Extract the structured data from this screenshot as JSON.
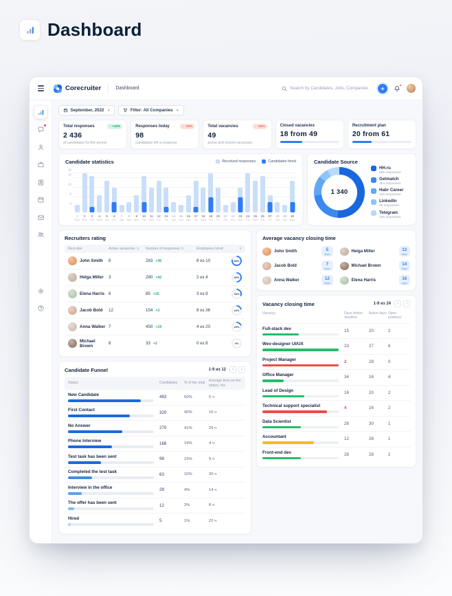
{
  "page_title": "Dashboard",
  "topbar": {
    "brand": "Corecruiter",
    "breadcrumb": "Dashboard",
    "search_placeholder": "Search by Candidates, Jobs, Companies"
  },
  "sidebar": {
    "active": "dashboard",
    "items": [
      "dashboard",
      "messages",
      "candidates",
      "jobs",
      "companies",
      "calendar",
      "mail",
      "team",
      "settings",
      "help"
    ]
  },
  "filters": {
    "date": "September, 2022",
    "company": "Filter: All Companies"
  },
  "stats": [
    {
      "label": "Total responses",
      "badge": "+15%",
      "direction": "up",
      "value": "2 436",
      "subtitle": "of candidates for the period"
    },
    {
      "label": "Responses today",
      "badge": "-10%",
      "direction": "down",
      "value": "98",
      "subtitle": "candidates left a response"
    },
    {
      "label": "Total vacancies",
      "badge": "-10%",
      "direction": "down",
      "value": "49",
      "subtitle": "active and closed vacancies"
    },
    {
      "label": "Closed vacancies",
      "value": "18 from 49",
      "progress": 37
    },
    {
      "label": "Recruitment plan",
      "value": "20 from 61",
      "progress": 33
    }
  ],
  "chart_data": [
    {
      "type": "bar",
      "title": "Candidate statistics",
      "legend": [
        "Received responses",
        "Candidates hired"
      ],
      "yticks": [
        2,
        6,
        10,
        14,
        16
      ],
      "ylim": [
        0,
        17
      ],
      "categories": [
        1,
        2,
        3,
        4,
        5,
        6,
        7,
        8,
        9,
        10,
        11,
        12,
        13,
        14,
        15,
        16,
        17,
        18,
        19,
        20,
        21,
        22,
        23,
        24,
        25,
        26,
        27,
        28,
        29,
        30
      ],
      "weekdays": [
        "Sun",
        "Mon",
        "Tue",
        "Wed",
        "Thu",
        "Fri",
        "Sat",
        "Sun",
        "Mon",
        "Tue",
        "Wed",
        "Thu",
        "Fri",
        "Sat",
        "Sun",
        "Mon",
        "Tue",
        "Wed",
        "Thu",
        "Fri",
        "Sat",
        "Sun",
        "Mon",
        "Tue",
        "Wed",
        "Thu",
        "Fri",
        "Sat",
        "Sun",
        "Mon"
      ],
      "series": [
        {
          "name": "Received responses",
          "color": "#c9def9",
          "values": [
            3,
            16,
            15,
            7,
            13,
            10,
            3,
            4,
            7,
            15,
            10,
            13,
            10,
            4,
            3,
            7,
            13,
            10,
            16,
            10,
            3,
            4,
            10,
            16,
            13,
            15,
            7,
            4,
            3,
            13
          ]
        },
        {
          "name": "Candidates hired",
          "color": "#2f7df5",
          "values": [
            0,
            0,
            2,
            0,
            0,
            4,
            0,
            0,
            0,
            4,
            0,
            0,
            2,
            0,
            0,
            0,
            2,
            0,
            6,
            0,
            0,
            0,
            6,
            0,
            0,
            0,
            4,
            0,
            0,
            4
          ]
        }
      ]
    },
    {
      "type": "pie",
      "title": "Candidate Source",
      "center_total": "1 340",
      "segments": [
        {
          "label": "HH.ru",
          "value": 685,
          "sub": "685 responses",
          "color": "#1967dc"
        },
        {
          "label": "Getmatch",
          "value": 294,
          "sub": "294 responses",
          "color": "#3a89ee"
        },
        {
          "label": "Habr Career",
          "value": 168,
          "sub": "168 responses",
          "color": "#61a7f3"
        },
        {
          "label": "LinkedIn",
          "value": 88,
          "sub": "88 responses",
          "color": "#8fc4f8"
        },
        {
          "label": "Telegram",
          "value": 105,
          "sub": "105 responses",
          "color": "#b6dbfb"
        }
      ]
    }
  ],
  "recruiters": {
    "title": "Recruiters rating",
    "columns": [
      "Recruiter",
      "Active vacancies",
      "Number of responses",
      "Employees hired"
    ],
    "rows": [
      {
        "name": "John Smith",
        "avatar": "#e7a06b",
        "active": "8",
        "responses": "283",
        "delta": "+36",
        "hired": "8 из 10",
        "pct": 80
      },
      {
        "name": "Helga Miller",
        "avatar": "#c9b8a8",
        "active": "3",
        "responses": "280",
        "delta": "+42",
        "hired": "2 из 4",
        "pct": 50
      },
      {
        "name": "Elena Harris",
        "avatar": "#b9ccb4",
        "active": "6",
        "responses": "85",
        "delta": "+15",
        "hired": "3 из 9",
        "pct": 33
      },
      {
        "name": "Jacob Bold",
        "avatar": "#d8b4a0",
        "active": "12",
        "responses": "154",
        "delta": "+3",
        "hired": "8 из 36",
        "pct": 22
      },
      {
        "name": "Anna Walker",
        "avatar": "#d6c6bb",
        "active": "7",
        "responses": "450",
        "delta": "+19",
        "hired": "4 из 20",
        "pct": 20
      },
      {
        "name": "Michael Brown",
        "avatar": "#9a8573",
        "active": "8",
        "responses": "33",
        "delta": "+2",
        "hired": "0 из 8",
        "pct": 0
      }
    ]
  },
  "avg_closing": {
    "title": "Average vacancy closing time",
    "unit": "days",
    "items": [
      {
        "name": "John Smith",
        "avatar": "#e7a06b",
        "days": "5"
      },
      {
        "name": "Helga Miller",
        "avatar": "#c9b8a8",
        "days": "12"
      },
      {
        "name": "Jacob Bold",
        "avatar": "#d8b4a0",
        "days": "7"
      },
      {
        "name": "Michael Brown",
        "avatar": "#9a8573",
        "days": "14"
      },
      {
        "name": "Anna Walker",
        "avatar": "#d6c6bb",
        "days": "12"
      },
      {
        "name": "Elena Harris",
        "avatar": "#b9ccb4",
        "days": "16"
      }
    ]
  },
  "vacancy_closing": {
    "title": "Vacancy closing time",
    "pagination": "1-9 из 24",
    "columns": [
      "Vacancy",
      "Days before deadline",
      "Active days",
      "Open positions"
    ],
    "rows": [
      {
        "name": "Full-stack dev",
        "bar": 48,
        "color": "green",
        "days": "15",
        "alert": false,
        "active": "20",
        "open": "2"
      },
      {
        "name": "Wev-designer UI/UX",
        "bar": 100,
        "color": "green",
        "days": "23",
        "alert": false,
        "active": "27",
        "open": "6"
      },
      {
        "name": "Project Manager",
        "bar": 100,
        "color": "red",
        "days": "2",
        "alert": true,
        "active": "28",
        "open": "0"
      },
      {
        "name": "Office Manager",
        "bar": 28,
        "color": "green",
        "days": "34",
        "alert": false,
        "active": "16",
        "open": "4"
      },
      {
        "name": "Lead of Design",
        "bar": 55,
        "color": "green",
        "days": "16",
        "alert": false,
        "active": "20",
        "open": "2"
      },
      {
        "name": "Technical support specialist",
        "bar": 85,
        "color": "red",
        "days": "4",
        "alert": true,
        "active": "16",
        "open": "2"
      },
      {
        "name": "Data Scientist",
        "bar": 50,
        "color": "green",
        "days": "28",
        "alert": false,
        "active": "30",
        "open": "1"
      },
      {
        "name": "Accountant",
        "bar": 68,
        "color": "yellow",
        "days": "12",
        "alert": false,
        "active": "26",
        "open": "1"
      },
      {
        "name": "Front-end dev",
        "bar": 50,
        "color": "green",
        "days": "28",
        "alert": false,
        "active": "28",
        "open": "2"
      }
    ]
  },
  "funnel": {
    "title": "Candidate Funnel",
    "pagination": "1-9 из 12",
    "columns": [
      "Status",
      "Candidates",
      "% of the total",
      "Average time on the status, hrs"
    ],
    "rows": [
      {
        "status": "New Candidate",
        "bar": 85,
        "color": "#1b6ade",
        "candidates": "483",
        "pct": "50%",
        "time": "5 ч"
      },
      {
        "status": "First Contact",
        "bar": 72,
        "color": "#1b6ade",
        "candidates": "320",
        "pct": "40%",
        "time": "16 ч"
      },
      {
        "status": "No Answer",
        "bar": 63,
        "color": "#1b6ade",
        "candidates": "270",
        "pct": "41%",
        "time": "29 ч"
      },
      {
        "status": "Phone Interview",
        "bar": 51,
        "color": "#1b6ade",
        "candidates": "168",
        "pct": "19%",
        "time": "4 ч"
      },
      {
        "status": "Test task has been sent",
        "bar": 38,
        "color": "#1b6ade",
        "candidates": "98",
        "pct": "15%",
        "time": "9 ч"
      },
      {
        "status": "Completed the test task",
        "bar": 28,
        "color": "#3f8ceb",
        "candidates": "63",
        "pct": "10%",
        "time": "20 ч"
      },
      {
        "status": "Interview in the office",
        "bar": 16,
        "color": "#57a2f2",
        "candidates": "28",
        "pct": "4%",
        "time": "14 ч"
      },
      {
        "status": "The offer has been sent",
        "bar": 7,
        "color": "#7fbdf7",
        "candidates": "12",
        "pct": "2%",
        "time": "8 ч"
      },
      {
        "status": "Hired",
        "bar": 3,
        "color": "#a9d5fa",
        "candidates": "5",
        "pct": "1%",
        "time": "22 ч"
      }
    ]
  },
  "theme": {
    "primary": "#2f7df5",
    "green": "#24bd68",
    "red": "#ef4b45",
    "yellow": "#f5b922",
    "ring_track": "#e9edf4"
  }
}
